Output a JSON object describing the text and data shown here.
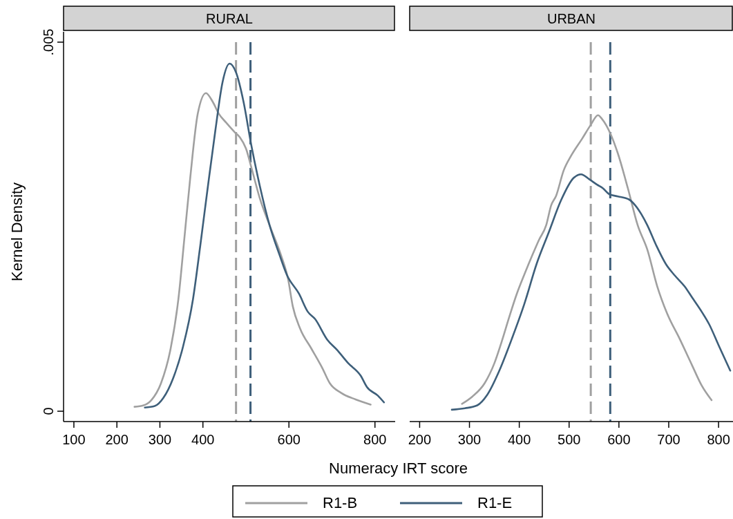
{
  "chart_data": [
    {
      "type": "line",
      "title": "RURAL",
      "xlabel": "Numeracy IRT score",
      "ylabel": "Kernel Density",
      "xlim": [
        76,
        847
      ],
      "xticks": [
        100,
        200,
        300,
        400,
        600,
        800
      ],
      "ylim": [
        -0.00014,
        0.005
      ],
      "yticks": [
        0,
        {
          "value": 0.005,
          "label": ".005"
        }
      ],
      "legend": "bottom",
      "line_style": "solid",
      "grid": false,
      "series": [
        {
          "name": "R1-B",
          "color": "#a0a0a0",
          "x": [
            241,
            262,
            280,
            302.6,
            325,
            343,
            357,
            371,
            388,
            407,
            423,
            437,
            454,
            474,
            486,
            500,
            514.6,
            532,
            555,
            583,
            598,
            609,
            626,
            652,
            678,
            695,
            721,
            755,
            790
          ],
          "values": [
            6e-05,
            8e-05,
            0.00015,
            0.00038,
            0.00085,
            0.00152,
            0.00235,
            0.00319,
            0.00403,
            0.00431,
            0.00419,
            0.00403,
            0.00391,
            0.00378,
            0.00371,
            0.00356,
            0.00326,
            0.00289,
            0.00252,
            0.00209,
            0.00179,
            0.00142,
            0.00112,
            0.00085,
            0.00058,
            0.00038,
            0.00025,
            0.00016,
            9e-05
          ]
        },
        {
          "name": "R1-E",
          "color": "#3e5f7a",
          "x": [
            265,
            288,
            308,
            331,
            354,
            377,
            394,
            411,
            428.6,
            445.7,
            462,
            477,
            494.5,
            512,
            532,
            555,
            578,
            595,
            623.6,
            643.6,
            660.7,
            689,
            712,
            738,
            767,
            781,
            807,
            821
          ],
          "values": [
            5e-05,
            7e-05,
            0.00018,
            0.00045,
            0.00088,
            0.00152,
            0.00225,
            0.00302,
            0.00379,
            0.00446,
            0.00471,
            0.00459,
            0.00419,
            0.00362,
            0.00306,
            0.00252,
            0.00212,
            0.00185,
            0.00159,
            0.00135,
            0.00125,
            0.00097,
            0.00083,
            0.00065,
            0.00048,
            0.00033,
            0.00021,
            0.00012
          ]
        }
      ],
      "ref_lines": [
        {
          "axis": "x",
          "value": 477,
          "color": "#a0a0a0",
          "line_style": "dashed"
        },
        {
          "axis": "x",
          "value": 510.6,
          "color": "#3e5f7a",
          "line_style": "dashed"
        }
      ]
    },
    {
      "type": "line",
      "title": "URBAN",
      "xlim": [
        180,
        829
      ],
      "xticks": [
        200,
        300,
        400,
        500,
        600,
        700,
        800
      ],
      "ylim": [
        -0.00014,
        0.005
      ],
      "tick_labels": "x",
      "line_style": "solid",
      "grid": false,
      "series": [
        {
          "color": "#a0a0a0",
          "x": [
            285,
            306,
            330.5,
            350,
            365,
            380,
            395,
            410,
            424.7,
            439.5,
            454,
            464,
            474,
            489,
            504,
            526,
            543.5,
            558,
            566,
            583,
            598,
            618,
            637.7,
            657,
            677,
            697,
            722,
            747,
            766,
            786
          ],
          "values": [
            0.0001,
            0.0002,
            0.00038,
            0.00065,
            0.00095,
            0.00128,
            0.00159,
            0.00185,
            0.00209,
            0.00232,
            0.00252,
            0.00279,
            0.00292,
            0.00326,
            0.00346,
            0.00369,
            0.00388,
            0.00401,
            0.00396,
            0.00376,
            0.00349,
            0.00302,
            0.00252,
            0.00219,
            0.00169,
            0.00132,
            0.00098,
            0.00062,
            0.00035,
            0.00015
          ]
        },
        {
          "color": "#3e5f7a",
          "x": [
            264.6,
            291,
            315.7,
            335.5,
            360,
            385,
            410,
            434.5,
            459,
            484,
            509,
            524,
            541,
            556,
            568,
            580.7,
            598,
            620,
            632.7,
            645,
            657,
            674.7,
            694.6,
            712,
            732,
            747,
            766,
            781,
            801,
            823.5
          ],
          "values": [
            2e-05,
            4e-05,
            8e-05,
            0.00022,
            0.00055,
            0.00098,
            0.00145,
            0.00199,
            0.00242,
            0.00286,
            0.00316,
            0.00321,
            0.00314,
            0.00307,
            0.00302,
            0.00294,
            0.00291,
            0.00287,
            0.00279,
            0.00267,
            0.00252,
            0.00225,
            0.00199,
            0.00184,
            0.00169,
            0.00154,
            0.00135,
            0.00118,
            0.00088,
            0.00055
          ]
        }
      ],
      "ref_lines": [
        {
          "axis": "x",
          "value": 543.5,
          "color": "#a0a0a0",
          "line_style": "dashed"
        },
        {
          "axis": "x",
          "value": 582.6,
          "color": "#3e5f7a",
          "line_style": "dashed"
        }
      ]
    }
  ]
}
